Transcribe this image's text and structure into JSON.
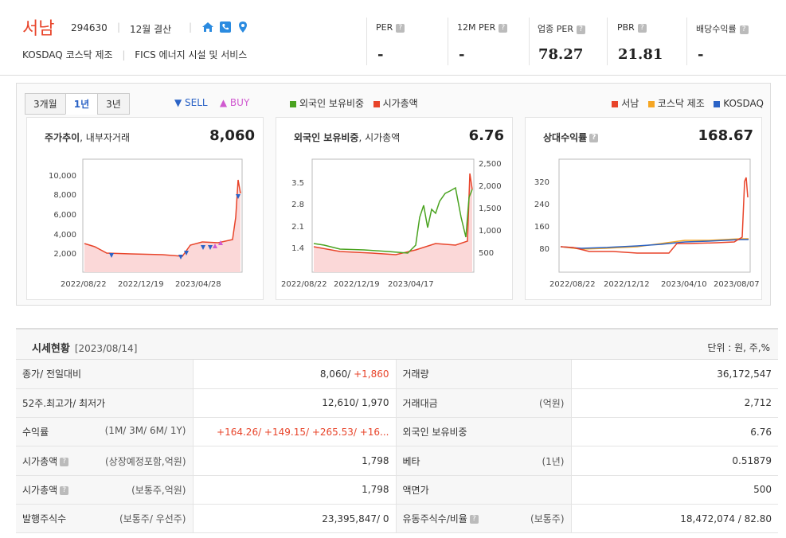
{
  "company": {
    "name": "서남",
    "code": "294630",
    "fiscal": "12월 결산",
    "market": "KOSDAQ  코스닥 제조",
    "sector": "FICS 에너지 시설 및 서비스"
  },
  "metrics": [
    {
      "label": "PER",
      "value": "-"
    },
    {
      "label": "12M PER",
      "value": "-"
    },
    {
      "label": "업종 PER",
      "value": "78.27"
    },
    {
      "label": "PBR",
      "value": "21.81"
    },
    {
      "label": "배당수익률",
      "value": "-"
    }
  ],
  "tabs": [
    "3개월",
    "1년",
    "3년"
  ],
  "sell_label": "▼ SELL",
  "buy_label": "▲ BUY",
  "legend_mid": [
    "외국인 보유비중",
    "시가총액"
  ],
  "legend_right": [
    "서남",
    "코스닥 제조",
    "KOSDAQ"
  ],
  "colors": {
    "accent": "#e8442a",
    "green": "#4aa320",
    "orange": "#f5a623",
    "blue": "#2b63c6",
    "pink": "#d05ad0"
  },
  "panels": [
    {
      "title": "주가추이",
      "sub": ", 내부자거래",
      "value": "8,060",
      "yticks": [
        "10,000",
        "8,000",
        "6,000",
        "4,000",
        "2,000"
      ],
      "xticks": [
        "2022/08/22",
        "2022/12/19",
        "2023/04/28"
      ]
    },
    {
      "title": "외국인 보유비중",
      "sub": ", 시가총액",
      "value": "6.76",
      "yticks": [
        "3.5",
        "2.8",
        "2.1",
        "1.4"
      ],
      "yticks_right": [
        "2,500",
        "2,000",
        "1,500",
        "1,000",
        "500"
      ],
      "xticks": [
        "2022/08/22",
        "2022/12/19",
        "2023/04/17"
      ]
    },
    {
      "title": "상대수익률",
      "sub": "",
      "value": "168.67",
      "yticks": [
        "320",
        "240",
        "160",
        "80"
      ],
      "xticks": [
        "2022/08/22",
        "2022/12/12",
        "2023/04/10",
        "2023/08/07"
      ]
    }
  ],
  "table": {
    "title": "시세현황",
    "date": "[2023/08/14]",
    "unit": "단위 : 원, 주,%",
    "rows": [
      {
        "l1": "종가/ 전일대비",
        "q1": "",
        "v1a": "8,060/ ",
        "v1b": "+1,860",
        "l2": "거래량",
        "q2": "",
        "v2": "36,172,547"
      },
      {
        "l1": "52주.최고가/ 최저가",
        "q1": "",
        "v1a": "12,610/ 1,970",
        "v1b": "",
        "l2": "거래대금",
        "q2": "(억원)",
        "v2": "2,712"
      },
      {
        "l1": "수익률",
        "q1": "(1M/ 3M/ 6M/ 1Y)",
        "v1a": "",
        "v1b": "+164.26/ +149.15/ +265.53/ +16...",
        "l2": "외국인 보유비중",
        "q2": "",
        "v2": "6.76"
      },
      {
        "l1": "시가총액",
        "q1": "(상장예정포함,억원)",
        "v1a": "1,798",
        "v1b": "",
        "l2": "베타",
        "q2": "(1년)",
        "v2": "0.51879"
      },
      {
        "l1": "시가총액",
        "q1": "(보통주,억원)",
        "v1a": "1,798",
        "v1b": "",
        "l2": "액면가",
        "q2": "",
        "v2": "500"
      },
      {
        "l1": "발행주식수",
        "q1": "(보통주/ 우선주)",
        "v1a": "23,395,847/ 0",
        "v1b": "",
        "l2": "유동주식수/비율",
        "q2": "(보통주)",
        "v2": "18,472,074 / 82.80"
      }
    ]
  }
}
